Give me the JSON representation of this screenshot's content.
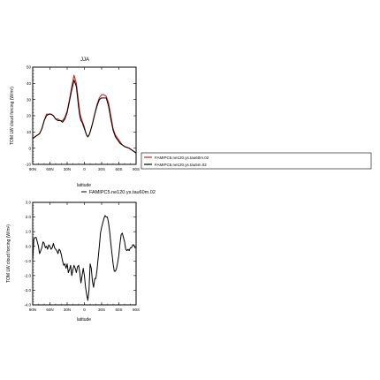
{
  "chart_data": [
    {
      "type": "line",
      "title": "JJA",
      "ylabel": "TOM LW cloud forcing (W/m²)",
      "xlabel": "latitude",
      "xlim": [
        90,
        -90
      ],
      "ylim": [
        -10,
        50
      ],
      "x_ticks": [
        90,
        60,
        30,
        0,
        -30,
        -60,
        -90
      ],
      "x_tick_labels": [
        "90N",
        "60N",
        "30N",
        "0",
        "30S",
        "60S",
        "90S"
      ],
      "y_ticks": [
        -10,
        0,
        10,
        20,
        30,
        40,
        50
      ],
      "y_tick_labels": [
        "-10",
        "0",
        "10",
        "20",
        "30",
        "40",
        "50"
      ],
      "grid": false,
      "legend_position": "right",
      "x": [
        90,
        86,
        82,
        78,
        74,
        70,
        66,
        62,
        58,
        54,
        50,
        46,
        42,
        38,
        34,
        30,
        26,
        22,
        18,
        14,
        10,
        8,
        6,
        4,
        2,
        0,
        -2,
        -4,
        -6,
        -8,
        -10,
        -14,
        -18,
        -22,
        -26,
        -30,
        -34,
        -38,
        -42,
        -46,
        -50,
        -54,
        -58,
        -62,
        -66,
        -70,
        -74,
        -78,
        -82,
        -86,
        -90
      ],
      "series": [
        {
          "name": "FAMIPC5.ne120.ys.tau60m.02",
          "color": "#d62020",
          "values": [
            6,
            7,
            8,
            9,
            12,
            17,
            21,
            21,
            21,
            20,
            18,
            18,
            17,
            17,
            19,
            23,
            30,
            38,
            45,
            40,
            28,
            22,
            19,
            17,
            15,
            13,
            10,
            8,
            7,
            8,
            10,
            15,
            21,
            27,
            31,
            33,
            33,
            32,
            28,
            20,
            12,
            8,
            6,
            4,
            2,
            1,
            0.5,
            0,
            -1,
            -2,
            -3
          ]
        },
        {
          "name": "FAMIPC5.ne120.ys.tau5m.02",
          "color": "#000000",
          "values": [
            6,
            7,
            8,
            9,
            12,
            17,
            20,
            21,
            21,
            20,
            18,
            17,
            17,
            16,
            18,
            22,
            29,
            36,
            42,
            38,
            25,
            20,
            17,
            16,
            14,
            12,
            10,
            8,
            7,
            8,
            10,
            15,
            21,
            26,
            30,
            31,
            31,
            31,
            26,
            18,
            11,
            7,
            5,
            3,
            2,
            1,
            0.5,
            0,
            -1,
            -2,
            -3
          ]
        }
      ]
    },
    {
      "type": "line",
      "title": "",
      "ylabel": "TOM LW cloud forcing (W/m²)",
      "xlabel": "latitude",
      "xlim": [
        90,
        -90
      ],
      "ylim": [
        -4,
        3
      ],
      "x_ticks": [
        90,
        60,
        30,
        0,
        -30,
        -60,
        -90
      ],
      "x_tick_labels": [
        "90N",
        "60N",
        "30N",
        "0",
        "30S",
        "60S",
        "90S"
      ],
      "y_ticks": [
        -4,
        -3,
        -2,
        -1,
        0,
        1,
        2,
        3
      ],
      "y_tick_labels": [
        "-4.0",
        "-3.0",
        "-2.0",
        "-1.0",
        "0.0",
        "1.0",
        "2.0",
        "3.0"
      ],
      "grid": false,
      "legend_position": "top-right",
      "x": [
        90,
        88,
        86,
        84,
        82,
        80,
        78,
        76,
        74,
        72,
        70,
        68,
        66,
        64,
        62,
        60,
        58,
        56,
        54,
        52,
        50,
        48,
        46,
        44,
        42,
        40,
        38,
        36,
        34,
        32,
        30,
        28,
        26,
        24,
        22,
        20,
        18,
        16,
        14,
        12,
        10,
        8,
        6,
        4,
        2,
        0,
        -2,
        -4,
        -6,
        -8,
        -10,
        -12,
        -14,
        -16,
        -18,
        -20,
        -22,
        -24,
        -26,
        -28,
        -30,
        -32,
        -34,
        -36,
        -38,
        -40,
        -42,
        -44,
        -46,
        -48,
        -50,
        -52,
        -54,
        -56,
        -58,
        -60,
        -62,
        -64,
        -66,
        -68,
        -70,
        -72,
        -74,
        -76,
        -78,
        -80,
        -82,
        -84,
        -86,
        -88,
        -90
      ],
      "series": [
        {
          "name": "FAMIPC5.ne120.ys.tau60m.02",
          "color": "#000000",
          "values": [
            -1.0,
            0.5,
            0.6,
            0.6,
            0.3,
            0.0,
            -0.5,
            -0.3,
            -0.1,
            0.3,
            0.2,
            -0.1,
            0.0,
            -0.2,
            0.1,
            0.0,
            -0.2,
            -0.1,
            0.2,
            -0.1,
            -0.2,
            -0.3,
            -0.5,
            -0.2,
            -0.3,
            -0.6,
            -1.0,
            -1.3,
            -1.2,
            -1.5,
            -1.2,
            -1.8,
            -1.6,
            -1.3,
            -2.0,
            -1.6,
            -1.3,
            -1.5,
            -1.8,
            -1.4,
            -1.3,
            -1.8,
            -2.5,
            -2.0,
            -1.5,
            -2.0,
            -2.8,
            -3.3,
            -3.7,
            -3.0,
            -1.2,
            -1.5,
            -2.4,
            -2.8,
            -2.2,
            -2.2,
            -1.6,
            -0.8,
            0.0,
            0.9,
            1.3,
            1.6,
            1.9,
            2.1,
            2.0,
            2.0,
            1.6,
            1.0,
            0.2,
            -0.5,
            -1.2,
            -1.7,
            -1.7,
            -1.5,
            -1.1,
            -0.6,
            0.2,
            0.8,
            0.9,
            0.6,
            0.3,
            -0.2,
            -0.3,
            -0.2,
            -0.3,
            -0.1,
            -0.1,
            0.1,
            0.1,
            -0.1,
            -0.1
          ]
        }
      ]
    }
  ]
}
